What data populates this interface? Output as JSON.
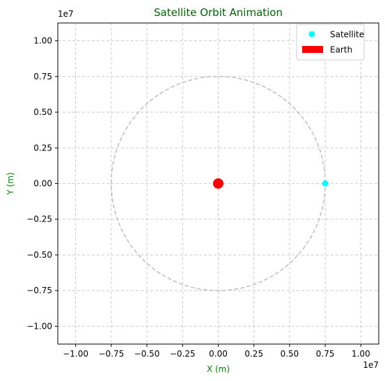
{
  "chart_data": {
    "type": "scatter",
    "title": "Satellite Orbit Animation",
    "xlabel": "X (m)",
    "ylabel": "Y (m)",
    "x_offset_label": "1e7",
    "y_offset_label": "1e7",
    "xlim": [
      -11250000,
      11250000
    ],
    "ylim": [
      -11250000,
      11250000
    ],
    "xticks": [
      -10000000,
      -7500000,
      -5000000,
      -2500000,
      0,
      2500000,
      5000000,
      7500000,
      10000000
    ],
    "yticks": [
      -10000000,
      -7500000,
      -5000000,
      -2500000,
      0,
      2500000,
      5000000,
      7500000,
      10000000
    ],
    "xtick_labels": [
      "−1.00",
      "−0.75",
      "−0.50",
      "−0.25",
      "0.00",
      "0.25",
      "0.50",
      "0.75",
      "1.00"
    ],
    "ytick_labels": [
      "−1.00",
      "−0.75",
      "−0.50",
      "−0.25",
      "0.00",
      "0.25",
      "0.50",
      "0.75",
      "1.00"
    ],
    "grid": true,
    "legend_position": "top-right",
    "orbit": {
      "center": [
        0,
        0
      ],
      "radius": 7500000,
      "color": "#bfbfbf",
      "style": "dashed"
    },
    "series": [
      {
        "name": "Satellite",
        "marker": "circle",
        "color": "#00ffff",
        "points": [
          [
            7500000,
            0
          ]
        ]
      },
      {
        "name": "Earth",
        "marker": "circle",
        "color": "#ff0000",
        "points": [
          [
            0,
            0
          ]
        ]
      }
    ],
    "colors": {
      "title": "#006400",
      "axis_label": "#008000",
      "grid": "#c0c0c0"
    }
  }
}
